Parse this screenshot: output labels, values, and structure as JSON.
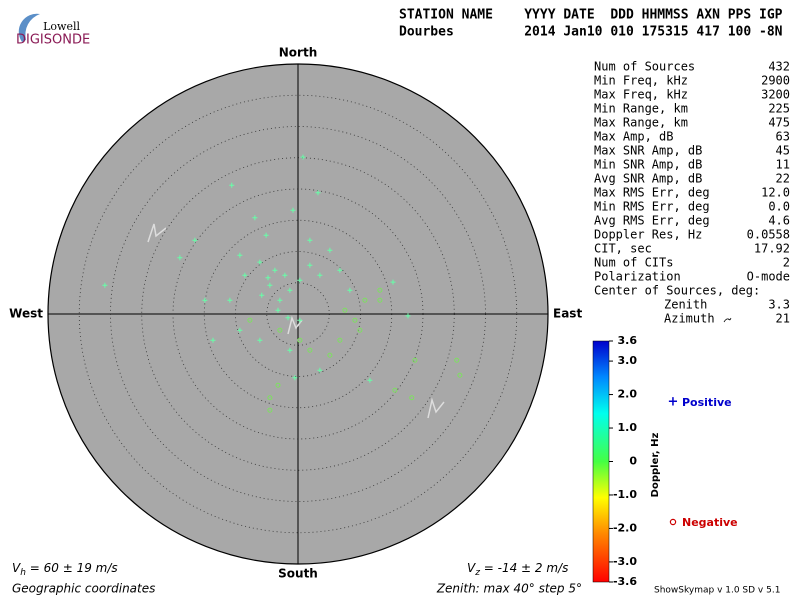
{
  "chart_data": {
    "type": "skymap",
    "logo": {
      "top": "Lowell",
      "bottom": "DIGISONDE"
    },
    "header": [
      "STATION NAME    YYYY DATE  DDD HHMMSS AXN PPS IGP",
      "Dourbes         2014 Jan10 010 175315 417 100 -8N"
    ],
    "compass": {
      "north": "North",
      "south": "South",
      "east": "East",
      "west": "West"
    },
    "rlim": [
      0,
      40
    ],
    "rticks": [
      5,
      10,
      15,
      20,
      25,
      30,
      35,
      40
    ],
    "stats": [
      [
        "Num of Sources",
        "432"
      ],
      [
        "Min Freq, kHz",
        "2900"
      ],
      [
        "Max Freq, kHz",
        "3200"
      ],
      [
        "Min Range, km",
        "225"
      ],
      [
        "Max Range, km",
        "475"
      ],
      [
        "Max Amp, dB",
        "63"
      ],
      [
        "Max SNR Amp, dB",
        "45"
      ],
      [
        "Min SNR Amp, dB",
        "11"
      ],
      [
        "Avg SNR Amp, dB",
        "22"
      ],
      [
        "Max RMS Err, deg",
        "12.0"
      ],
      [
        "Min RMS Err, deg",
        "0.0"
      ],
      [
        "Avg RMS Err, deg",
        "4.6"
      ],
      [
        "Doppler Res, Hz",
        "0.0558"
      ],
      [
        "CIT, sec",
        "17.92"
      ],
      [
        "Num of CITs",
        "2"
      ],
      [
        "Polarization",
        "O-mode"
      ]
    ],
    "center_title": "Center of Sources, deg:",
    "center": [
      [
        "Zenith",
        "3.3"
      ],
      [
        "Azimuth",
        "21"
      ]
    ],
    "colorbar": {
      "label": "Doppler, Hz",
      "ylim": [
        -3.6,
        3.6
      ],
      "yticks": [
        3.6,
        {
          "value": 3,
          "label": "3.0"
        },
        {
          "value": 2,
          "label": "2.0"
        },
        {
          "value": 1,
          "label": "1.0"
        },
        0,
        {
          "value": -1,
          "label": "-1.0"
        },
        {
          "value": -2,
          "label": "-2.0"
        },
        {
          "value": -3,
          "label": "-3.0"
        },
        -3.6
      ]
    },
    "series": [
      {
        "name": "Positive",
        "color": "#66ffa8",
        "legend_color": "#0000cc",
        "x": [
          0.8,
          -10.6,
          3.2,
          -0.8,
          -6.9,
          -5.1,
          -9.3,
          -6.1,
          -3.7,
          -2.1,
          -4.5,
          -5.8,
          -2.9,
          -1.3,
          0.3,
          1.9,
          3.5,
          6.7,
          8.3,
          -30.9,
          -18.9,
          -14.9,
          -13.6,
          -9.3,
          -6.1,
          -1.3,
          -0.5,
          3.5,
          11.5,
          15.2,
          17.6,
          -8.5,
          -4.8,
          -3.2,
          -1.6,
          0.3,
          5.1,
          -10.9,
          1.9,
          -16.5
        ],
        "values": [
          25.1,
          20.6,
          19.4,
          16.6,
          15.4,
          12.6,
          9.4,
          8.3,
          7.0,
          6.2,
          4.6,
          3.0,
          2.2,
          3.8,
          5.4,
          7.8,
          6.2,
          7.0,
          3.8,
          4.6,
          9.0,
          2.2,
          -4.2,
          -2.6,
          -4.2,
          -5.8,
          -10.2,
          -9.0,
          -10.6,
          5.1,
          -0.3,
          6.2,
          5.8,
          0.6,
          -0.6,
          -1.0,
          10.2,
          2.2,
          11.8,
          11.8
        ]
      },
      {
        "name": "Negative",
        "color": "#7ee060",
        "legend_color": "#cc0000",
        "x": [
          9.1,
          9.9,
          10.7,
          7.5,
          13.1,
          5.1,
          -4.5,
          -3.2,
          -4.5,
          18.7,
          25.9,
          25.4,
          15.5,
          18.2,
          0.3,
          1.9,
          6.7,
          13.1,
          -2.9,
          -7.7
        ],
        "values": [
          -1.0,
          -2.6,
          2.2,
          0.6,
          2.2,
          -6.6,
          -13.4,
          -11.4,
          -15.4,
          -7.4,
          -9.8,
          -7.4,
          -12.2,
          -13.4,
          -4.2,
          -5.8,
          -4.2,
          3.8,
          -2.6,
          -1.0
        ]
      }
    ],
    "vh": {
      "symbol": "V",
      "sub": "h",
      "text": " = 60 ± 19 m/s"
    },
    "vz": {
      "symbol": "V",
      "sub": "z",
      "text": " = -14 ± 2 m/s"
    },
    "coords": "Geographic coordinates",
    "zenith_note": "Zenith: max 40°  step 5°",
    "version": "ShowSkymap v 1.0  SD v 5.1"
  }
}
